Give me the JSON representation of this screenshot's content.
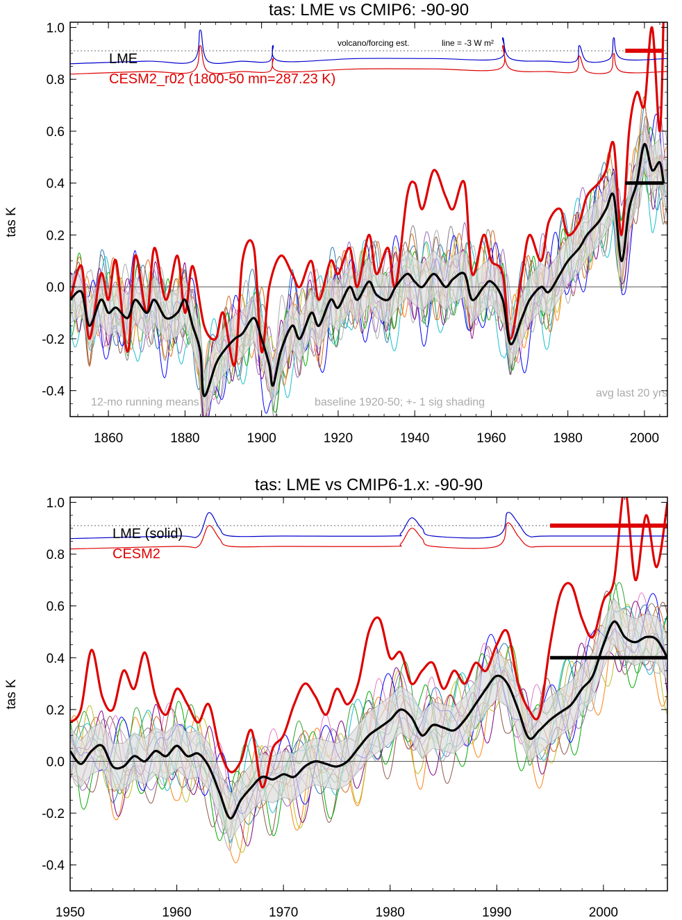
{
  "chart_data": [
    {
      "type": "line",
      "title": "tas: LME vs CMIP6: -90-90",
      "ylabel": "tas K",
      "xlabel": "",
      "xlim": [
        1850,
        2006
      ],
      "ylim": [
        -0.5,
        1.02
      ],
      "xticks": [
        1860,
        1880,
        1900,
        1920,
        1940,
        1960,
        1980,
        2000
      ],
      "yticks": [
        -0.4,
        -0.2,
        0.0,
        0.2,
        0.4,
        0.6,
        0.8,
        1.0
      ],
      "ytick_labels": [
        "-0.4",
        "-0.2",
        "0.0",
        "0.2",
        "0.4",
        "0.6",
        "0.8",
        "1.0"
      ],
      "legend": [
        {
          "label": "LME",
          "color": "#000000"
        },
        {
          "label": "CESM2_r02 (1800-50 mn=287.23 K)",
          "color": "#dd0000"
        }
      ],
      "annotations": {
        "forcing_label": "volcano/forcing est.",
        "forcing_line": "line = -3 W m²",
        "bottom_left": "12-mo running means",
        "bottom_center": "baseline 1920-50; +- 1 sig shading",
        "bottom_right": "avg last 20 yrs"
      },
      "avg_last_20": {
        "x": [
          1995,
          2005
        ],
        "lme": 0.4,
        "cesm2": 0.91
      },
      "series": [
        {
          "role": "cesm2",
          "color": "#dd0000",
          "x": [
            1850,
            1853,
            1855,
            1858,
            1860,
            1862,
            1865,
            1867,
            1870,
            1872,
            1875,
            1878,
            1880,
            1882,
            1885,
            1888,
            1890,
            1893,
            1895,
            1898,
            1900,
            1902,
            1905,
            1908,
            1910,
            1913,
            1915,
            1918,
            1920,
            1923,
            1925,
            1928,
            1930,
            1933,
            1935,
            1938,
            1940,
            1942,
            1945,
            1948,
            1950,
            1953,
            1955,
            1958,
            1960,
            1963,
            1965,
            1968,
            1970,
            1973,
            1975,
            1978,
            1980,
            1983,
            1985,
            1988,
            1990,
            1992,
            1994,
            1996,
            1998,
            2000,
            2002,
            2004,
            2005
          ],
          "y": [
            -0.05,
            0.08,
            -0.2,
            0.05,
            -0.05,
            0.1,
            -0.25,
            0.12,
            -0.1,
            0.15,
            -0.05,
            0.12,
            -0.1,
            0.08,
            -0.15,
            -0.2,
            -0.1,
            -0.3,
            0.1,
            0.15,
            -0.25,
            0.0,
            0.12,
            0.05,
            0.0,
            0.1,
            -0.05,
            0.1,
            0.05,
            0.15,
            0.0,
            0.2,
            0.05,
            0.15,
            0.0,
            0.35,
            0.4,
            0.3,
            0.45,
            0.35,
            0.3,
            0.4,
            0.05,
            0.2,
            0.1,
            0.05,
            -0.2,
            0.05,
            0.2,
            0.1,
            0.25,
            0.3,
            0.2,
            0.25,
            0.35,
            0.4,
            0.45,
            0.55,
            0.2,
            0.6,
            0.75,
            0.7,
            1.0,
            0.6,
            1.05
          ]
        },
        {
          "role": "lme_mean",
          "color": "#000000",
          "x": [
            1850,
            1853,
            1855,
            1858,
            1860,
            1862,
            1865,
            1867,
            1870,
            1872,
            1875,
            1878,
            1880,
            1882,
            1884,
            1885,
            1888,
            1890,
            1893,
            1895,
            1898,
            1900,
            1902,
            1903,
            1905,
            1908,
            1910,
            1913,
            1915,
            1918,
            1920,
            1923,
            1925,
            1928,
            1930,
            1933,
            1935,
            1938,
            1940,
            1942,
            1945,
            1948,
            1950,
            1953,
            1955,
            1958,
            1960,
            1963,
            1965,
            1968,
            1970,
            1973,
            1975,
            1978,
            1980,
            1983,
            1985,
            1988,
            1990,
            1992,
            1994,
            1996,
            1998,
            2000,
            2002,
            2004,
            2005
          ],
          "y": [
            -0.05,
            -0.02,
            -0.15,
            -0.05,
            -0.1,
            -0.08,
            -0.12,
            -0.05,
            -0.1,
            -0.05,
            -0.12,
            -0.1,
            -0.05,
            -0.15,
            -0.25,
            -0.42,
            -0.3,
            -0.25,
            -0.2,
            -0.18,
            -0.12,
            -0.2,
            -0.3,
            -0.38,
            -0.25,
            -0.15,
            -0.2,
            -0.1,
            -0.15,
            -0.05,
            -0.08,
            0.0,
            -0.05,
            0.02,
            -0.03,
            -0.05,
            0.0,
            0.05,
            0.02,
            0.0,
            0.05,
            0.0,
            0.03,
            0.05,
            -0.05,
            0.0,
            0.02,
            -0.05,
            -0.22,
            -0.12,
            -0.05,
            0.0,
            -0.02,
            0.05,
            0.1,
            0.15,
            0.2,
            0.25,
            0.3,
            0.35,
            0.1,
            0.3,
            0.4,
            0.55,
            0.45,
            0.48,
            0.4
          ]
        },
        {
          "role": "lme_forcing",
          "color": "#0000cc",
          "x": [
            1850,
            1870,
            1882,
            1884,
            1886,
            1895,
            1902,
            1903,
            1905,
            1925,
            1945,
            1962,
            1963,
            1965,
            1975,
            1982,
            1983,
            1985,
            1991,
            1992,
            1994,
            2006
          ],
          "y": [
            0.86,
            0.87,
            0.87,
            0.99,
            0.87,
            0.87,
            0.87,
            0.93,
            0.87,
            0.88,
            0.88,
            0.88,
            0.96,
            0.88,
            0.87,
            0.87,
            0.93,
            0.87,
            0.88,
            0.96,
            0.88,
            0.88
          ]
        },
        {
          "role": "cesm2_forcing",
          "color": "#dd0000",
          "x": [
            1850,
            1870,
            1882,
            1884,
            1886,
            1895,
            1902,
            1903,
            1905,
            1925,
            1945,
            1962,
            1963,
            1965,
            1975,
            1982,
            1983,
            1985,
            1991,
            1992,
            1994,
            2006
          ],
          "y": [
            0.82,
            0.83,
            0.83,
            0.93,
            0.83,
            0.83,
            0.83,
            0.88,
            0.83,
            0.84,
            0.84,
            0.84,
            0.93,
            0.84,
            0.83,
            0.83,
            0.89,
            0.83,
            0.83,
            0.9,
            0.83,
            0.83
          ]
        }
      ]
    },
    {
      "type": "line",
      "title": "tas: LME vs CMIP6-1.x: -90-90",
      "ylabel": "tas K",
      "xlabel": "",
      "xlim": [
        1950,
        2006
      ],
      "ylim": [
        -0.5,
        1.02
      ],
      "xticks": [
        1950,
        1960,
        1970,
        1980,
        1990,
        2000
      ],
      "yticks": [
        -0.4,
        -0.2,
        0.0,
        0.2,
        0.4,
        0.6,
        0.8,
        1.0
      ],
      "ytick_labels": [
        "-0.4",
        "-0.2",
        "0.0",
        "0.2",
        "0.4",
        "0.6",
        "0.8",
        "1.0"
      ],
      "legend": [
        {
          "label": "LME (solid)",
          "color": "#000000"
        },
        {
          "label": "CESM2",
          "color": "#dd0000"
        }
      ],
      "avg_last_20": {
        "x": [
          1995,
          2006
        ],
        "lme": 0.4,
        "cesm2": 0.91
      },
      "series": [
        {
          "role": "cesm2",
          "color": "#dd0000",
          "x": [
            1950,
            1951,
            1952,
            1953,
            1954,
            1955,
            1956,
            1957,
            1958,
            1959,
            1960,
            1961,
            1962,
            1963,
            1964,
            1965,
            1966,
            1967,
            1968,
            1969,
            1970,
            1971,
            1972,
            1973,
            1974,
            1975,
            1976,
            1977,
            1978,
            1979,
            1980,
            1981,
            1982,
            1983,
            1984,
            1985,
            1986,
            1987,
            1988,
            1989,
            1990,
            1991,
            1992,
            1993,
            1994,
            1995,
            1996,
            1997,
            1998,
            1999,
            2000,
            2001,
            2002,
            2003,
            2004,
            2005,
            2006
          ],
          "y": [
            0.15,
            0.2,
            0.43,
            0.25,
            0.2,
            0.35,
            0.28,
            0.42,
            0.25,
            0.18,
            0.28,
            0.22,
            0.15,
            0.22,
            0.05,
            -0.04,
            0.0,
            0.12,
            -0.1,
            0.05,
            0.1,
            0.22,
            0.3,
            0.25,
            0.18,
            0.28,
            0.22,
            0.3,
            0.5,
            0.55,
            0.4,
            0.42,
            0.3,
            0.35,
            0.38,
            0.28,
            0.35,
            0.3,
            0.38,
            0.35,
            0.45,
            0.5,
            0.3,
            0.2,
            0.18,
            0.45,
            0.65,
            0.68,
            0.55,
            0.48,
            0.62,
            0.7,
            1.05,
            0.7,
            0.95,
            0.75,
            1.0
          ]
        },
        {
          "role": "lme_mean",
          "color": "#000000",
          "x": [
            1950,
            1951,
            1952,
            1953,
            1954,
            1955,
            1956,
            1957,
            1958,
            1959,
            1960,
            1961,
            1962,
            1963,
            1964,
            1965,
            1966,
            1967,
            1968,
            1969,
            1970,
            1971,
            1972,
            1973,
            1974,
            1975,
            1976,
            1977,
            1978,
            1979,
            1980,
            1981,
            1982,
            1983,
            1984,
            1985,
            1986,
            1987,
            1988,
            1989,
            1990,
            1991,
            1992,
            1993,
            1994,
            1995,
            1996,
            1997,
            1998,
            1999,
            2000,
            2001,
            2002,
            2003,
            2004,
            2005,
            2006
          ],
          "y": [
            0.04,
            -0.01,
            0.04,
            0.06,
            -0.02,
            -0.02,
            0.02,
            0.0,
            0.04,
            0.02,
            0.06,
            0.02,
            0.03,
            -0.02,
            -0.12,
            -0.22,
            -0.15,
            -0.1,
            -0.06,
            -0.07,
            -0.05,
            -0.06,
            -0.02,
            0.0,
            -0.01,
            -0.02,
            0.0,
            0.05,
            0.1,
            0.13,
            0.16,
            0.2,
            0.17,
            0.1,
            0.14,
            0.13,
            0.12,
            0.16,
            0.22,
            0.28,
            0.33,
            0.3,
            0.2,
            0.09,
            0.12,
            0.16,
            0.19,
            0.22,
            0.28,
            0.33,
            0.45,
            0.54,
            0.48,
            0.46,
            0.48,
            0.47,
            0.4
          ]
        },
        {
          "role": "lme_forcing",
          "color": "#0000cc",
          "x": [
            1950,
            1960,
            1962,
            1963,
            1964,
            1965,
            1970,
            1980,
            1981,
            1982,
            1983,
            1984,
            1990,
            1991,
            1992,
            1993,
            1995,
            2006
          ],
          "y": [
            0.86,
            0.87,
            0.87,
            0.96,
            0.9,
            0.87,
            0.87,
            0.87,
            0.88,
            0.94,
            0.9,
            0.87,
            0.87,
            0.96,
            0.92,
            0.87,
            0.87,
            0.87
          ]
        },
        {
          "role": "cesm2_forcing",
          "color": "#dd0000",
          "x": [
            1950,
            1960,
            1962,
            1963,
            1964,
            1965,
            1970,
            1980,
            1981,
            1982,
            1983,
            1984,
            1990,
            1991,
            1992,
            1993,
            1995,
            2006
          ],
          "y": [
            0.82,
            0.83,
            0.83,
            0.91,
            0.86,
            0.83,
            0.83,
            0.83,
            0.84,
            0.9,
            0.86,
            0.83,
            0.83,
            0.92,
            0.87,
            0.83,
            0.83,
            0.83
          ]
        }
      ]
    }
  ],
  "ensemble_colors": [
    "#1f77b4",
    "#ff7f0e",
    "#2ca02c",
    "#9467bd",
    "#8c564b",
    "#e377c2",
    "#7f7f7f",
    "#bcbd22",
    "#17becf",
    "#aaaaaa",
    "#00aa00",
    "#0000ff",
    "#d2691e",
    "#800080"
  ]
}
